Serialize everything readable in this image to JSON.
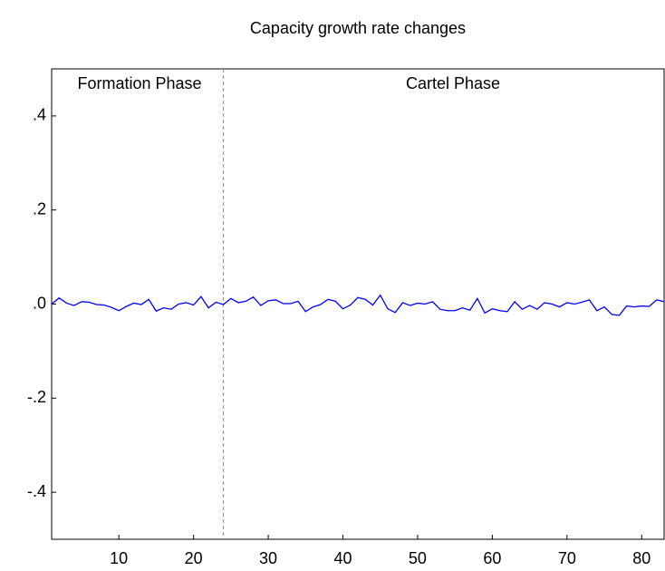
{
  "chart_data": {
    "type": "line",
    "title": "Capacity growth rate changes",
    "x": [
      1,
      2,
      3,
      4,
      5,
      6,
      7,
      8,
      9,
      10,
      11,
      12,
      13,
      14,
      15,
      16,
      17,
      18,
      19,
      20,
      21,
      22,
      23,
      24,
      25,
      26,
      27,
      28,
      29,
      30,
      31,
      32,
      33,
      34,
      35,
      36,
      37,
      38,
      39,
      40,
      41,
      42,
      43,
      44,
      45,
      46,
      47,
      48,
      49,
      50,
      51,
      52,
      53,
      54,
      55,
      56,
      57,
      58,
      59,
      60,
      61,
      62,
      63,
      64,
      65,
      66,
      67,
      68,
      69,
      70,
      71,
      72,
      73,
      74,
      75,
      76,
      77,
      78,
      79,
      80,
      81,
      82,
      83
    ],
    "series": [
      {
        "color": "#0000ff",
        "values": [
          0.0,
          0.013,
          0.002,
          -0.003,
          0.005,
          0.004,
          -0.001,
          -0.002,
          -0.007,
          -0.014,
          -0.005,
          0.002,
          -0.001,
          0.01,
          -0.015,
          -0.008,
          -0.011,
          0.0,
          0.003,
          -0.002,
          0.016,
          -0.008,
          0.004,
          -0.001,
          0.012,
          0.003,
          0.006,
          0.015,
          -0.003,
          0.007,
          0.009,
          0.001,
          0.001,
          0.006,
          -0.016,
          -0.006,
          -0.001,
          0.01,
          0.006,
          -0.01,
          -0.002,
          0.014,
          0.01,
          -0.002,
          0.019,
          -0.01,
          -0.018,
          0.003,
          -0.003,
          0.002,
          0.0,
          0.005,
          -0.011,
          -0.014,
          -0.014,
          -0.008,
          -0.013,
          0.012,
          -0.019,
          -0.01,
          -0.014,
          -0.016,
          0.005,
          -0.011,
          -0.003,
          -0.011,
          0.003,
          0.0,
          -0.006,
          0.003,
          0.0,
          0.004,
          0.009,
          -0.014,
          -0.006,
          -0.022,
          -0.024,
          -0.004,
          -0.006,
          -0.004,
          -0.005,
          0.009,
          0.005
        ]
      }
    ],
    "xlim": [
      1,
      83
    ],
    "xticks": [
      10,
      20,
      30,
      40,
      50,
      60,
      70,
      80
    ],
    "ylim": [
      -0.5,
      0.5
    ],
    "yticks": [
      {
        "value": -0.4,
        "label": "-.4"
      },
      {
        "value": -0.2,
        "label": "-.2"
      },
      {
        "value": 0,
        "label": ".0"
      },
      {
        "value": 0.2,
        "label": ".2"
      },
      {
        "value": 0.4,
        "label": ".4"
      }
    ],
    "vline": 24,
    "annotations": [
      {
        "text": "Formation Phase"
      },
      {
        "text": "Cartel Phase"
      }
    ]
  }
}
